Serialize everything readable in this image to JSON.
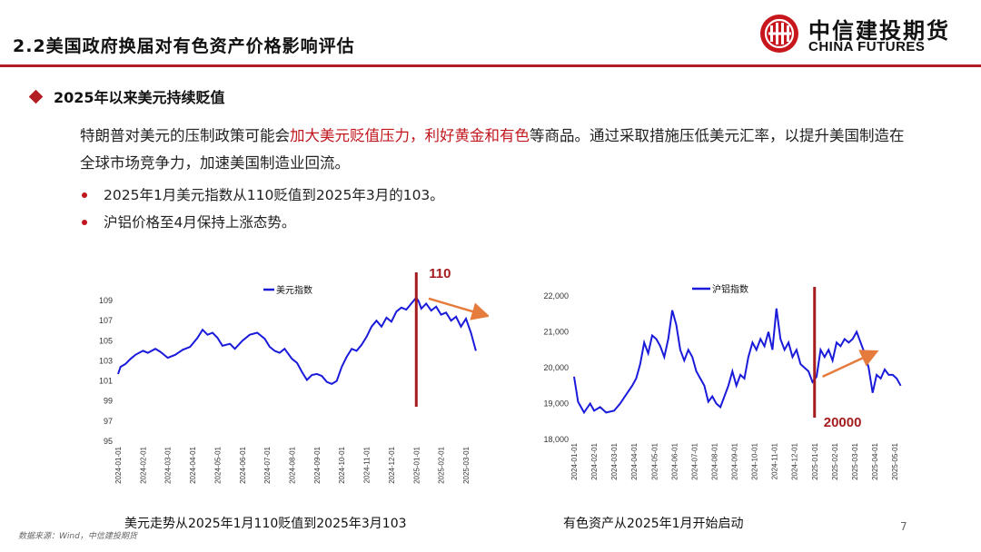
{
  "header": {
    "title": "2.2美国政府换届对有色资产价格影响评估"
  },
  "logo": {
    "name_cn": "中信建投期货",
    "name_en": "CHINA FUTURES",
    "brand_color": "#c8161d"
  },
  "section": {
    "heading": "2025年以来美元持续贬值"
  },
  "paragraph": {
    "part1": "特朗普对美元的压制政策可能会",
    "highlight1": "加大美元贬值压力",
    "part2": "，",
    "highlight2": "利好黄金和有色",
    "part3": "等商品。通过采取措施压低美元汇率，以提升美国制造在全球市场竞争力，加速美国制造业回流。"
  },
  "bullets": [
    "2025年1月美元指数从110贬值到2025年3月的103。",
    "沪铝价格至4月保持上涨态势。"
  ],
  "colors": {
    "accent": "#b21e23",
    "series": "#1a1adb",
    "annotation_arrow": "#e57b3c"
  },
  "chart_data": [
    {
      "type": "line",
      "legend": "美元指数",
      "annotation": "110",
      "yticks": [
        "109",
        "107",
        "105",
        "103",
        "101",
        "99",
        "97",
        "95"
      ],
      "ylim": [
        95,
        110
      ],
      "xticks": [
        "2024-01-01",
        "2024-02-01",
        "2024-03-01",
        "2024-04-01",
        "2024-05-01",
        "2024-06-01",
        "2024-07-01",
        "2024-08-01",
        "2024-09-01",
        "2024-10-01",
        "2024-11-01",
        "2024-12-01",
        "2025-01-01",
        "2025-02-01",
        "2025-03-01"
      ],
      "series": [
        {
          "name": "美元指数",
          "x": [
            0,
            0.1,
            0.3,
            0.5,
            0.7,
            1.0,
            1.2,
            1.5,
            1.7,
            2.0,
            2.3,
            2.6,
            2.9,
            3.2,
            3.4,
            3.6,
            3.8,
            4.0,
            4.2,
            4.5,
            4.7,
            5.0,
            5.3,
            5.6,
            5.9,
            6.1,
            6.3,
            6.5,
            6.7,
            7.0,
            7.2,
            7.4,
            7.6,
            7.8,
            8.0,
            8.2,
            8.4,
            8.6,
            8.8,
            9.0,
            9.2,
            9.4,
            9.6,
            9.8,
            10.0,
            10.2,
            10.4,
            10.6,
            10.8,
            11.0,
            11.2,
            11.4,
            11.6,
            11.8,
            12.0,
            12.1,
            12.2,
            12.4,
            12.6,
            12.8,
            13.0,
            13.2,
            13.4,
            13.6,
            13.8,
            14.0,
            14.2,
            14.4
          ],
          "values": [
            101.7,
            102.4,
            102.7,
            103.2,
            103.6,
            104.0,
            103.8,
            104.2,
            103.9,
            103.3,
            103.6,
            104.1,
            104.4,
            105.3,
            106.1,
            105.6,
            105.8,
            105.3,
            104.5,
            104.7,
            104.2,
            105.0,
            105.6,
            105.8,
            105.2,
            104.4,
            104.0,
            103.8,
            104.2,
            103.2,
            102.8,
            101.9,
            101.1,
            101.6,
            101.7,
            101.5,
            100.9,
            100.7,
            101.0,
            102.4,
            103.4,
            104.2,
            104.0,
            104.6,
            105.4,
            106.4,
            107.0,
            106.4,
            107.3,
            106.9,
            107.9,
            108.3,
            108.1,
            108.7,
            109.3,
            108.9,
            108.2,
            108.7,
            108.0,
            108.4,
            107.6,
            107.8,
            107.0,
            107.4,
            106.4,
            107.2,
            105.8,
            104.0
          ]
        }
      ]
    },
    {
      "type": "line",
      "legend": "沪铝指数",
      "annotation": "20000",
      "yticks": [
        "22,000",
        "21,000",
        "20,000",
        "19,000",
        "18,000"
      ],
      "ylim": [
        18000,
        22000
      ],
      "xticks": [
        "2024-01-01",
        "2024-02-01",
        "2024-03-01",
        "2024-04-01",
        "2024-05-01",
        "2024-06-01",
        "2024-07-01",
        "2024-08-01",
        "2024-09-01",
        "2024-10-01",
        "2024-11-01",
        "2024-12-01",
        "2025-01-01",
        "2025-02-01",
        "2025-03-01",
        "2025-04-01",
        "2025-05-01"
      ],
      "series": [
        {
          "name": "沪铝指数",
          "x": [
            0,
            0.2,
            0.5,
            0.8,
            1.0,
            1.3,
            1.6,
            2.0,
            2.3,
            2.6,
            2.9,
            3.1,
            3.3,
            3.5,
            3.7,
            3.9,
            4.1,
            4.3,
            4.5,
            4.7,
            4.9,
            5.1,
            5.3,
            5.5,
            5.7,
            5.9,
            6.1,
            6.3,
            6.5,
            6.7,
            6.9,
            7.1,
            7.3,
            7.5,
            7.7,
            7.9,
            8.1,
            8.3,
            8.5,
            8.7,
            8.9,
            9.1,
            9.3,
            9.5,
            9.7,
            9.9,
            10.1,
            10.3,
            10.5,
            10.7,
            10.9,
            11.1,
            11.3,
            11.5,
            11.7,
            11.9,
            12.1,
            12.3,
            12.5,
            12.7,
            12.9,
            13.1,
            13.3,
            13.5,
            13.7,
            13.9,
            14.1,
            14.3,
            14.5,
            14.7,
            14.9,
            15.1,
            15.3,
            15.5,
            15.7,
            15.9,
            16.1,
            16.3
          ],
          "values": [
            19750,
            19050,
            18750,
            19000,
            18800,
            18900,
            18750,
            18800,
            19000,
            19250,
            19500,
            19700,
            20100,
            20700,
            20400,
            20900,
            20800,
            20600,
            20300,
            20800,
            21600,
            21200,
            20500,
            20200,
            20500,
            20300,
            19900,
            19700,
            19500,
            19050,
            19200,
            19000,
            18900,
            19200,
            19500,
            19900,
            19500,
            19800,
            19700,
            20300,
            20700,
            20500,
            20800,
            20600,
            21000,
            20500,
            21650,
            20800,
            20500,
            20700,
            20300,
            20500,
            20100,
            20000,
            19900,
            19600,
            19750,
            20500,
            20300,
            20500,
            20200,
            20700,
            20600,
            20800,
            20700,
            20800,
            21000,
            20700,
            20400,
            20000,
            19300,
            19800,
            19700,
            19950,
            19800,
            19800,
            19700,
            19500
          ]
        }
      ]
    }
  ],
  "captions": {
    "left": "美元走势从2025年1月110贬值到2025年3月103",
    "right": "有色资产从2025年1月开始启动"
  },
  "footer": {
    "source": "数据来源：Wind，中信建投期货",
    "page": "7"
  }
}
